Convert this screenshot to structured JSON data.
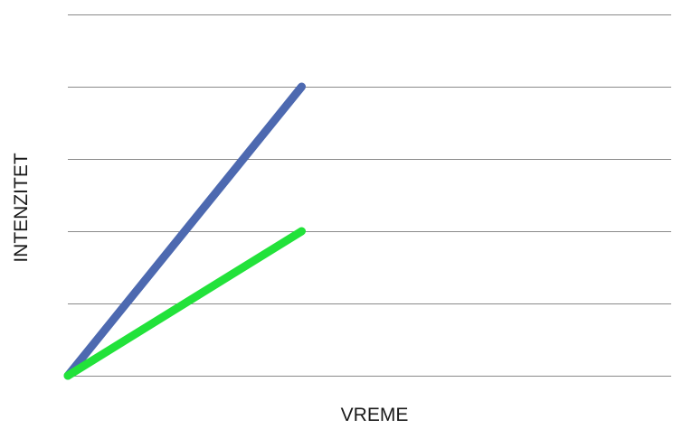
{
  "chart_data": {
    "type": "line",
    "title": "",
    "xlabel": "VREME",
    "ylabel": "INTENZITET",
    "grid": true,
    "legend": "none",
    "xlim": [
      0,
      8
    ],
    "ylim": [
      0,
      5
    ],
    "gridlines_y": [
      0,
      1,
      2,
      3,
      4,
      5
    ],
    "series": [
      {
        "color": "#4d69b0",
        "x": [
          0,
          3.1
        ],
        "y": [
          0,
          4
        ]
      },
      {
        "color": "#22e23a",
        "x": [
          0,
          3.1
        ],
        "y": [
          0,
          2
        ]
      }
    ]
  }
}
